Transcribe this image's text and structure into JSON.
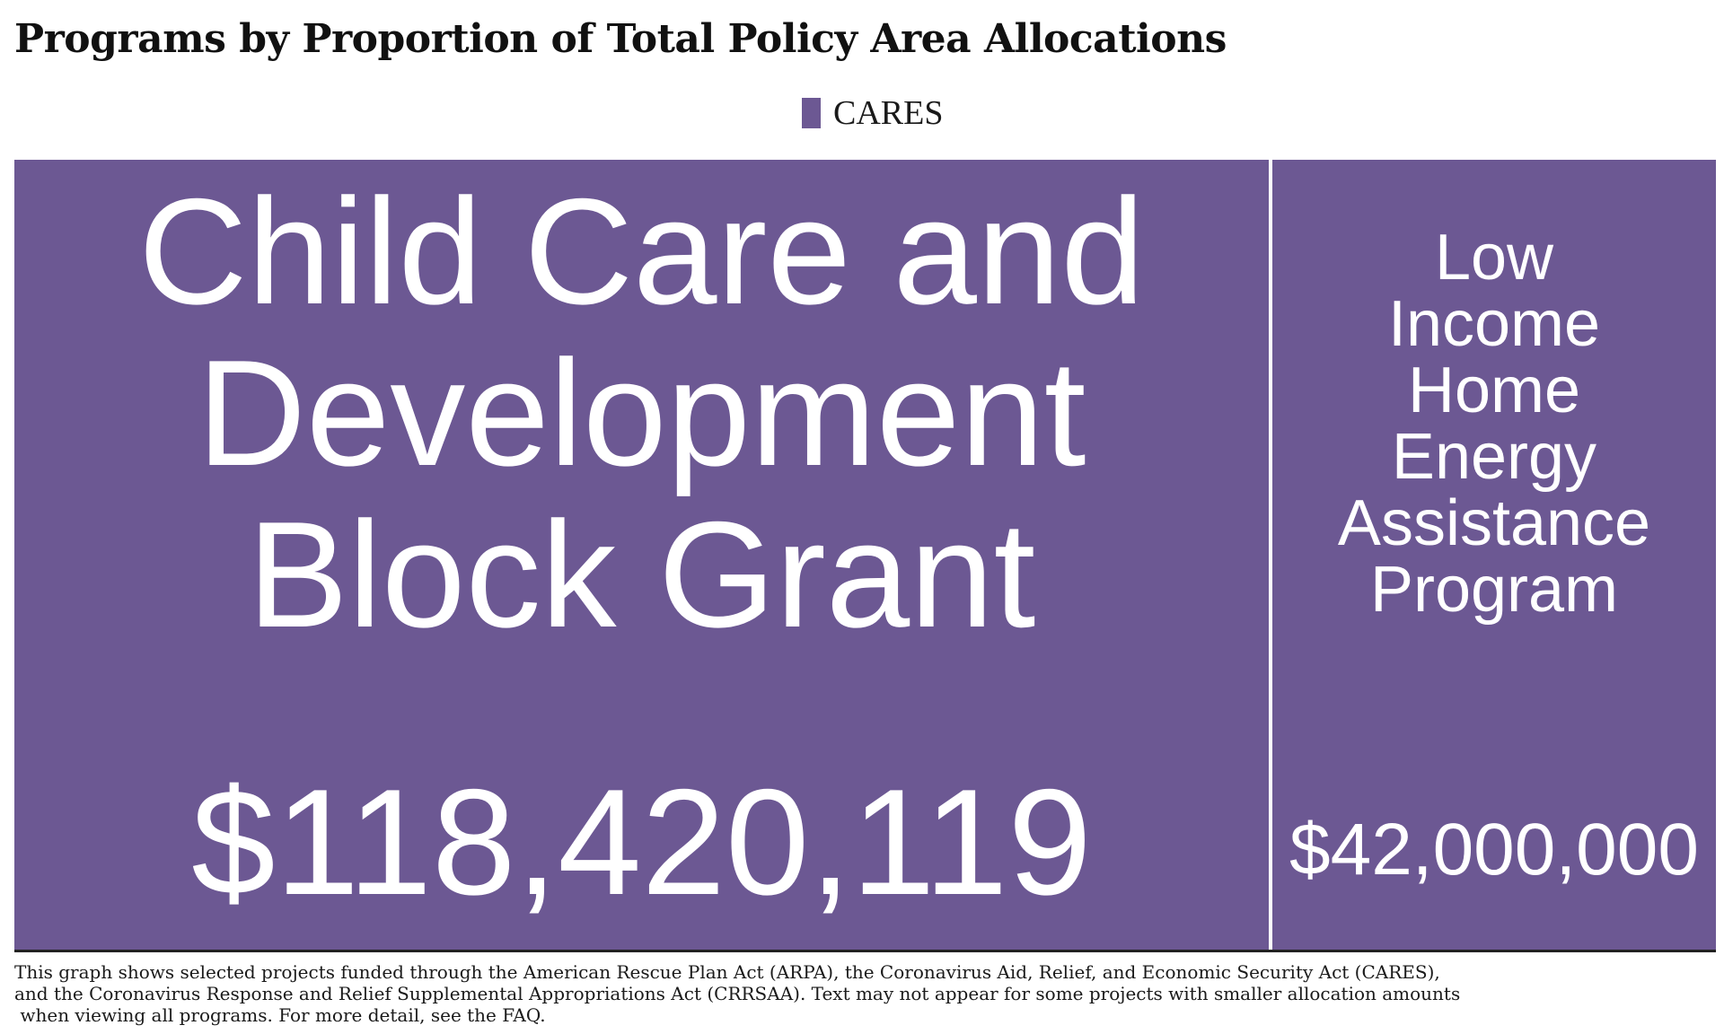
{
  "title": "Programs by Proportion of Total Policy Area Allocations",
  "legend": {
    "label": "CARES",
    "color": "#6c5893"
  },
  "chart_data": {
    "type": "treemap",
    "title": "Programs by Proportion of Total Policy Area Allocations",
    "legend": [
      "CARES"
    ],
    "series": [
      {
        "name": "CARES",
        "items": [
          {
            "label_lines": [
              "Child Care and",
              "Development",
              "Block Grant"
            ],
            "value": 118420119,
            "value_label": "$118,420,119"
          },
          {
            "label_lines": [
              "Low",
              "Income",
              "Home",
              "Energy",
              "Assistance",
              "Program"
            ],
            "value": 42000000,
            "value_label": "$42,000,000"
          }
        ]
      }
    ]
  },
  "footnote": {
    "lines": [
      "This graph shows selected projects funded through the American Rescue Plan Act (ARPA), the Coronavirus Aid, Relief, and Economic Security Act (CARES),",
      "and the Coronavirus Response and Relief Supplemental Appropriations Act (CRRSAA). Text may not appear for some projects with smaller allocation amounts",
      " when viewing all programs. For more detail, see the FAQ."
    ]
  }
}
